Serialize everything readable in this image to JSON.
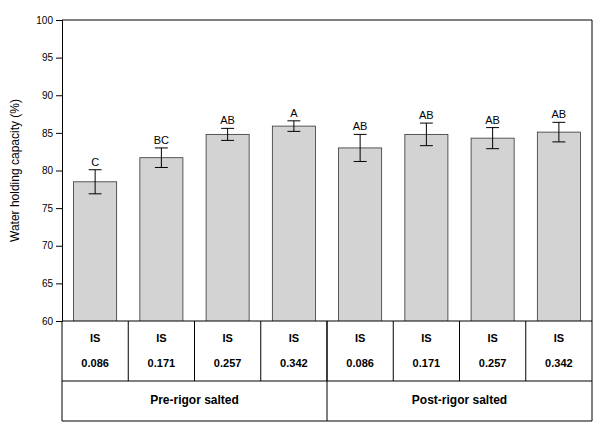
{
  "chart_data": {
    "type": "bar",
    "ylabel": "Water holding capacity (%)",
    "category_title": "IS",
    "categories": [
      "0.086",
      "0.171",
      "0.257",
      "0.342",
      "0.086",
      "0.171",
      "0.257",
      "0.342"
    ],
    "groups": [
      "Pre-rigor salted",
      "Post-rigor salted"
    ],
    "values": [
      78.5,
      81.7,
      84.8,
      85.9,
      83.0,
      84.8,
      84.3,
      85.1
    ],
    "errors": [
      1.6,
      1.3,
      0.8,
      0.7,
      1.8,
      1.5,
      1.4,
      1.3
    ],
    "sig_labels": [
      "C",
      "BC",
      "AB",
      "A",
      "AB",
      "AB",
      "AB",
      "AB"
    ],
    "color": "#d3d3d3",
    "ylim": [
      60,
      100
    ],
    "yticks": [
      60,
      65,
      70,
      75,
      80,
      85,
      90,
      95,
      100
    ],
    "grid": false
  }
}
